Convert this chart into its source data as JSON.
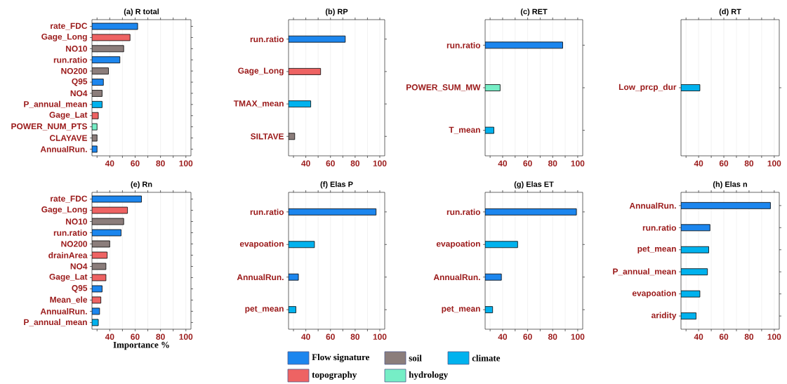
{
  "chart_data": [
    {
      "type": "bar",
      "orientation": "horizontal",
      "title": "(a) R total",
      "categories": [
        "rate_FDC",
        "Gage_Long",
        "NO10",
        "run.ratio",
        "NO200",
        "Q95",
        "NO4",
        "P_annual_mean",
        "Gage_Lat",
        "POWER_NUM_PTS",
        "CLAYAVE",
        "AnnualRun."
      ],
      "values": [
        62,
        56,
        51,
        48,
        39,
        35,
        34,
        34,
        31,
        30,
        30,
        30
      ],
      "colors": [
        "#1c86ee",
        "#ee6363",
        "#8b7d7b",
        "#1c86ee",
        "#8b7d7b",
        "#1c86ee",
        "#8b7d7b",
        "#00b2ee",
        "#ee6363",
        "#76eec6",
        "#8b7d7b",
        "#1c86ee"
      ],
      "xlim": [
        26,
        104
      ],
      "xticks": [
        {
          "value": 30,
          "label": null
        },
        40,
        {
          "value": 50,
          "label": null
        },
        60,
        {
          "value": 70,
          "label": null
        },
        80,
        {
          "value": 90,
          "label": null
        },
        100
      ],
      "grid": "x"
    },
    {
      "type": "bar",
      "orientation": "horizontal",
      "title": "(b) RP",
      "categories": [
        "run.ratio",
        "Gage_Long",
        "TMAX_mean",
        "SILTAVE"
      ],
      "values": [
        72,
        52,
        44,
        31
      ],
      "colors": [
        "#1c86ee",
        "#ee6363",
        "#00b2ee",
        "#8b7d7b"
      ],
      "xlim": [
        26,
        104
      ],
      "xticks": [
        {
          "value": 30,
          "label": null
        },
        40,
        {
          "value": 50,
          "label": null
        },
        60,
        {
          "value": 70,
          "label": null
        },
        80,
        {
          "value": 90,
          "label": null
        },
        100
      ],
      "grid": "x"
    },
    {
      "type": "bar",
      "orientation": "horizontal",
      "title": "(c) RET",
      "categories": [
        "run.ratio",
        "POWER_SUM_MW",
        "T_mean"
      ],
      "values": [
        88,
        38,
        33
      ],
      "colors": [
        "#1c86ee",
        "#76eec6",
        "#00b2ee"
      ],
      "xlim": [
        26,
        104
      ],
      "xticks": [
        {
          "value": 30,
          "label": null
        },
        40,
        {
          "value": 50,
          "label": null
        },
        60,
        {
          "value": 70,
          "label": null
        },
        80,
        {
          "value": 90,
          "label": null
        },
        100
      ],
      "grid": "x"
    },
    {
      "type": "bar",
      "orientation": "horizontal",
      "title": "(d) RT",
      "categories": [
        "Low_prcp_dur"
      ],
      "values": [
        41
      ],
      "colors": [
        "#00b2ee"
      ],
      "xlim": [
        26,
        104
      ],
      "xticks": [
        {
          "value": 30,
          "label": null
        },
        40,
        {
          "value": 50,
          "label": null
        },
        60,
        {
          "value": 70,
          "label": null
        },
        80,
        {
          "value": 90,
          "label": null
        },
        100
      ],
      "grid": "x"
    },
    {
      "type": "bar",
      "orientation": "horizontal",
      "title": "(e) Rn",
      "xlabel": "Importance %",
      "categories": [
        "rate_FDC",
        "Gage_Long",
        "NO10",
        "run.ratio",
        "NO200",
        "drainArea",
        "NO4",
        "Gage_Lat",
        "Q95",
        "Mean_ele",
        "AnnualRun.",
        "P_annual_mean"
      ],
      "values": [
        65,
        54,
        51,
        49,
        40,
        38,
        37,
        37,
        34,
        33,
        32,
        31
      ],
      "colors": [
        "#1c86ee",
        "#ee6363",
        "#8b7d7b",
        "#1c86ee",
        "#8b7d7b",
        "#ee6363",
        "#8b7d7b",
        "#ee6363",
        "#1c86ee",
        "#ee6363",
        "#1c86ee",
        "#00b2ee"
      ],
      "xlim": [
        26,
        104
      ],
      "xticks": [
        {
          "value": 30,
          "label": null
        },
        40,
        {
          "value": 50,
          "label": null
        },
        60,
        {
          "value": 70,
          "label": null
        },
        80,
        {
          "value": 90,
          "label": null
        },
        100
      ],
      "grid": "x"
    },
    {
      "type": "bar",
      "orientation": "horizontal",
      "title": "(f) Elas P",
      "categories": [
        "run.ratio",
        "evapoation",
        "AnnualRun.",
        "pet_mean"
      ],
      "values": [
        97,
        47,
        34,
        32
      ],
      "colors": [
        "#1c86ee",
        "#00b2ee",
        "#1c86ee",
        "#00b2ee"
      ],
      "xlim": [
        26,
        104
      ],
      "xticks": [
        {
          "value": 30,
          "label": null
        },
        40,
        {
          "value": 50,
          "label": null
        },
        60,
        {
          "value": 70,
          "label": null
        },
        80,
        {
          "value": 90,
          "label": null
        },
        100
      ],
      "grid": "x"
    },
    {
      "type": "bar",
      "orientation": "horizontal",
      "title": "(g) Elas ET",
      "categories": [
        "run.ratio",
        "evapoation",
        "AnnualRun.",
        "pet_mean"
      ],
      "values": [
        99,
        52,
        39,
        32
      ],
      "colors": [
        "#1c86ee",
        "#00b2ee",
        "#1c86ee",
        "#00b2ee"
      ],
      "xlim": [
        26,
        104
      ],
      "xticks": [
        {
          "value": 30,
          "label": null
        },
        40,
        {
          "value": 50,
          "label": null
        },
        60,
        {
          "value": 70,
          "label": null
        },
        80,
        {
          "value": 90,
          "label": null
        },
        100
      ],
      "grid": "x"
    },
    {
      "type": "bar",
      "orientation": "horizontal",
      "title": "(h) Elas n",
      "categories": [
        "AnnualRun.",
        "run.ratio",
        "pet_mean",
        "P_annual_mean",
        "evapoation",
        "aridity"
      ],
      "values": [
        97,
        49,
        48,
        47,
        41,
        38
      ],
      "colors": [
        "#1c86ee",
        "#1c86ee",
        "#00b2ee",
        "#00b2ee",
        "#00b2ee",
        "#00b2ee"
      ],
      "xlim": [
        26,
        104
      ],
      "xticks": [
        {
          "value": 30,
          "label": null
        },
        40,
        {
          "value": 50,
          "label": null
        },
        60,
        {
          "value": 70,
          "label": null
        },
        80,
        {
          "value": 90,
          "label": null
        },
        100
      ],
      "grid": "x"
    },
    {
      "type": "other",
      "series": [
        {
          "name": "Flow signature",
          "color": "#1c86ee"
        },
        {
          "name": "soil",
          "color": "#8b7d7b"
        },
        {
          "name": "climate",
          "color": "#00b2ee"
        },
        {
          "name": "topography",
          "color": "#ee6363"
        },
        {
          "name": "hydrology",
          "color": "#76eec6"
        }
      ]
    }
  ]
}
